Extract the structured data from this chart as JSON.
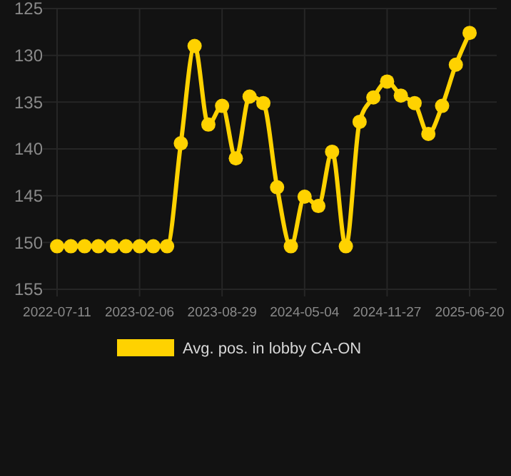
{
  "chart_data": {
    "type": "line",
    "categories": [
      "2022-07-11",
      null,
      null,
      null,
      null,
      null,
      "2023-02-06",
      null,
      null,
      null,
      null,
      null,
      "2023-08-29",
      null,
      null,
      null,
      null,
      null,
      "2024-05-04",
      null,
      null,
      null,
      null,
      null,
      "2024-11-27",
      null,
      null,
      null,
      null,
      null,
      "2025-06-20"
    ],
    "series": [
      {
        "name": "Avg. pos. in lobby CA-ON",
        "color": "#ffd200",
        "values": [
          150.4,
          150.4,
          150.4,
          150.4,
          150.4,
          150.4,
          150.4,
          150.4,
          150.4,
          139.4,
          129.0,
          137.4,
          135.4,
          141.0,
          134.4,
          135.1,
          144.1,
          150.4,
          145.1,
          146.1,
          140.3,
          150.4,
          137.1,
          134.5,
          132.8,
          134.3,
          135.1,
          138.4,
          135.4,
          131.0,
          127.6
        ]
      }
    ],
    "ylim": [
      155,
      125
    ],
    "yticks": [
      125,
      130,
      135,
      140,
      145,
      150,
      155
    ],
    "grid": true,
    "legend": "bottom",
    "marker": "circle",
    "line_style": "solid"
  }
}
